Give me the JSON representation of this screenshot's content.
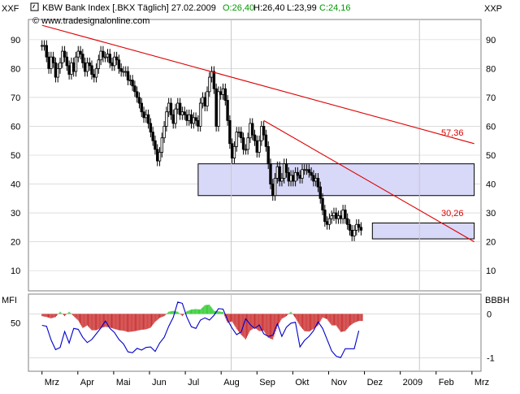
{
  "header": {
    "title": "KBW Bank Index [.BKX  Täglich] 27.02.2009",
    "open": "O:26,40",
    "high": "H:26,40",
    "low": "L:23,99",
    "close": "C:24,16",
    "watermark": "© www.tradesignalonline.com"
  },
  "axis_labels": {
    "left_top": "XXF",
    "right_top": "XXP",
    "mfi_left": "MFI",
    "mfi_right": "BBBH"
  },
  "colors": {
    "background": "#ffffff",
    "grid": "#c8c8c8",
    "trendline": "#dd0000",
    "zone_fill": "#d8d8f8",
    "mfi_line": "#0000cc",
    "hist_pos": "#33cc33",
    "hist_neg": "#cc3333",
    "open_label": "#009900",
    "close_label": "#009900"
  },
  "chart_data": [
    {
      "type": "candlestick",
      "title": "KBW Bank Index [.BKX  Täglich] 27.02.2009",
      "ylim": [
        3,
        97
      ],
      "yticks": [
        10,
        20,
        30,
        40,
        50,
        60,
        70,
        80,
        90
      ],
      "xlabels": [
        "Mrz",
        "Apr",
        "Mai",
        "Jun",
        "Jul",
        "Aug",
        "Sep",
        "Okt",
        "Nov",
        "Dez",
        "2009",
        "Feb",
        "Mrz"
      ],
      "series": [
        {
          "values": [
            [
              3.0,
              88
            ],
            [
              3.5,
              88
            ],
            [
              4.0,
              84
            ],
            [
              4.5,
              80
            ],
            [
              5.0,
              84
            ],
            [
              5.5,
              82
            ],
            [
              6.0,
              77
            ],
            [
              6.5,
              80
            ],
            [
              7.0,
              82
            ],
            [
              7.5,
              86
            ],
            [
              8.0,
              84
            ],
            [
              8.5,
              81
            ],
            [
              9.0,
              78
            ],
            [
              9.5,
              82
            ],
            [
              10.0,
              79
            ],
            [
              10.5,
              84
            ],
            [
              11.0,
              86
            ],
            [
              11.5,
              85
            ],
            [
              12.0,
              82
            ],
            [
              12.5,
              79
            ],
            [
              13.0,
              82
            ],
            [
              13.5,
              81
            ],
            [
              14.0,
              78
            ],
            [
              14.5,
              77
            ],
            [
              15.0,
              80
            ],
            [
              15.5,
              83
            ],
            [
              16.0,
              86
            ],
            [
              16.5,
              84
            ],
            [
              17.0,
              84
            ],
            [
              17.5,
              85
            ],
            [
              18.0,
              82
            ],
            [
              18.5,
              81
            ],
            [
              19.0,
              84
            ],
            [
              19.5,
              83
            ],
            [
              20.0,
              80
            ],
            [
              20.5,
              79
            ],
            [
              21.0,
              79
            ],
            [
              21.5,
              79
            ],
            [
              22.0,
              76
            ],
            [
              22.5,
              76
            ],
            [
              23.0,
              74
            ],
            [
              23.5,
              72
            ],
            [
              24.0,
              70
            ],
            [
              24.5,
              68
            ],
            [
              25.0,
              65
            ],
            [
              25.5,
              63
            ],
            [
              26.0,
              64
            ],
            [
              26.5,
              61
            ],
            [
              27.0,
              58
            ],
            [
              27.5,
              55
            ],
            [
              28.0,
              52
            ],
            [
              28.5,
              48
            ],
            [
              29.0,
              51
            ],
            [
              29.5,
              56
            ],
            [
              30.0,
              60
            ],
            [
              30.5,
              65
            ],
            [
              31.0,
              68
            ],
            [
              31.5,
              64
            ],
            [
              32.0,
              61
            ],
            [
              32.5,
              66
            ],
            [
              33.0,
              68
            ],
            [
              33.5,
              64
            ],
            [
              34.0,
              65
            ],
            [
              34.5,
              64
            ],
            [
              35.0,
              62
            ],
            [
              35.5,
              64
            ],
            [
              36.0,
              61
            ],
            [
              36.5,
              63
            ],
            [
              37.0,
              62
            ],
            [
              37.5,
              60
            ],
            [
              38.0,
              68
            ],
            [
              38.5,
              70
            ],
            [
              39.0,
              67
            ],
            [
              39.5,
              72
            ],
            [
              40.0,
              77
            ],
            [
              40.5,
              79
            ],
            [
              41.0,
              73
            ],
            [
              41.5,
              60
            ],
            [
              42.0,
              72
            ],
            [
              42.5,
              71
            ],
            [
              43.0,
              73
            ],
            [
              43.5,
              69
            ],
            [
              44.0,
              62
            ],
            [
              44.5,
              54
            ],
            [
              45.0,
              49
            ],
            [
              45.5,
              53
            ],
            [
              46.0,
              58
            ],
            [
              46.5,
              58
            ],
            [
              47.0,
              56
            ],
            [
              47.5,
              52
            ],
            [
              48.0,
              52
            ],
            [
              48.5,
              56
            ],
            [
              49.0,
              61
            ],
            [
              49.5,
              57
            ],
            [
              50.0,
              55
            ],
            [
              50.5,
              51
            ],
            [
              51.0,
              55
            ],
            [
              51.5,
              60
            ],
            [
              52.0,
              57
            ],
            [
              52.5,
              53
            ],
            [
              53.0,
              47
            ],
            [
              53.5,
              40
            ],
            [
              54.0,
              36
            ],
            [
              54.5,
              42
            ],
            [
              55.0,
              46
            ],
            [
              55.5,
              41
            ],
            [
              56.0,
              42
            ],
            [
              56.5,
              47
            ],
            [
              57.0,
              44
            ],
            [
              57.5,
              41
            ],
            [
              58.0,
              43
            ],
            [
              58.5,
              41
            ],
            [
              59.0,
              44
            ],
            [
              59.5,
              43
            ],
            [
              60.0,
              42
            ],
            [
              60.5,
              45
            ],
            [
              61.0,
              45
            ],
            [
              61.5,
              45
            ],
            [
              62.0,
              44
            ],
            [
              62.5,
              43
            ],
            [
              63.0,
              41
            ],
            [
              63.5,
              42
            ],
            [
              64.0,
              39
            ],
            [
              64.5,
              35
            ],
            [
              65.0,
              31
            ],
            [
              65.5,
              27
            ],
            [
              66.0,
              26
            ],
            [
              66.5,
              28
            ],
            [
              67.0,
              29
            ],
            [
              67.5,
              30
            ],
            [
              68.0,
              28
            ],
            [
              68.5,
              29
            ],
            [
              69.0,
              28
            ],
            [
              69.5,
              31
            ],
            [
              70.0,
              28
            ],
            [
              70.5,
              26
            ],
            [
              71.0,
              24
            ],
            [
              71.5,
              22
            ],
            [
              72.0,
              24
            ],
            [
              72.5,
              26
            ],
            [
              73.0,
              25
            ],
            [
              73.5,
              24
            ]
          ]
        }
      ],
      "trendlines": [
        [
          3,
          95,
          98.5,
          54
        ],
        [
          52,
          62,
          98.5,
          20
        ]
      ],
      "trend_labels": [
        "57,36",
        "30,26"
      ],
      "zones": [
        [
          37.5,
          98.5,
          36,
          47
        ],
        [
          76,
          98.5,
          21,
          26.5
        ]
      ],
      "vlines": [
        44.8,
        86.4
      ]
    },
    {
      "type": "line",
      "ylabel": "MFI",
      "ylim": [
        -1.3,
        0.45
      ],
      "yticks_left": [
        "50"
      ],
      "yticks_right": [
        "0",
        "-1"
      ],
      "series": [
        {
          "values": [
            [
              3,
              -0.26
            ],
            [
              4,
              -0.28
            ],
            [
              5,
              -0.59
            ],
            [
              6,
              -0.81
            ],
            [
              7,
              -0.76
            ],
            [
              8,
              -0.4
            ],
            [
              9,
              -0.66
            ],
            [
              10,
              -0.33
            ],
            [
              11,
              -0.35
            ],
            [
              12,
              -0.53
            ],
            [
              13,
              -0.65
            ],
            [
              14,
              -0.58
            ],
            [
              15,
              -0.45
            ],
            [
              16,
              -0.32
            ],
            [
              17,
              -0.16
            ],
            [
              18,
              -0.33
            ],
            [
              19,
              -0.42
            ],
            [
              20,
              -0.58
            ],
            [
              21,
              -0.68
            ],
            [
              22,
              -0.86
            ],
            [
              23,
              -0.88
            ],
            [
              24,
              -0.78
            ],
            [
              25,
              -0.82
            ],
            [
              26,
              -0.76
            ],
            [
              27,
              -0.75
            ],
            [
              28,
              -0.85
            ],
            [
              29,
              -0.66
            ],
            [
              30,
              -0.53
            ],
            [
              31,
              -0.28
            ],
            [
              32,
              -0.08
            ],
            [
              33,
              0.27
            ],
            [
              34,
              0.24
            ],
            [
              35,
              -0.07
            ],
            [
              36,
              -0.29
            ],
            [
              37,
              -0.33
            ],
            [
              38,
              -0.14
            ],
            [
              39,
              -0.09
            ],
            [
              40,
              -0.14
            ],
            [
              41,
              -0.03
            ],
            [
              42,
              0.12
            ],
            [
              43,
              0.11
            ],
            [
              44,
              -0.14
            ],
            [
              45,
              -0.32
            ],
            [
              46,
              -0.47
            ],
            [
              47,
              -0.41
            ],
            [
              48,
              -0.11
            ],
            [
              49,
              -0.24
            ],
            [
              50,
              -0.33
            ],
            [
              51,
              -0.25
            ],
            [
              52,
              -0.45
            ],
            [
              53,
              -0.51
            ],
            [
              54,
              -0.48
            ],
            [
              55,
              -0.22
            ],
            [
              56,
              -0.51
            ],
            [
              57,
              -0.3
            ],
            [
              58,
              -0.21
            ],
            [
              59,
              -0.19
            ],
            [
              60,
              -0.75
            ],
            [
              61,
              -0.6
            ],
            [
              62,
              -0.51
            ],
            [
              63,
              -0.38
            ],
            [
              64,
              -0.18
            ],
            [
              65,
              -0.33
            ],
            [
              66,
              -0.58
            ],
            [
              67,
              -0.84
            ],
            [
              68,
              -0.96
            ],
            [
              69,
              -0.99
            ],
            [
              70,
              -0.79
            ],
            [
              71,
              -0.79
            ],
            [
              72,
              -0.79
            ],
            [
              73,
              -0.38
            ]
          ]
        }
      ],
      "histogram": [
        [
          3,
          -0.05
        ],
        [
          4,
          -0.07
        ],
        [
          5,
          -0.1
        ],
        [
          6,
          -0.07
        ],
        [
          7,
          0.05
        ],
        [
          8,
          -0.05
        ],
        [
          9,
          0.05
        ],
        [
          10,
          -0.05
        ],
        [
          11,
          -0.15
        ],
        [
          12,
          -0.32
        ],
        [
          13,
          -0.26
        ],
        [
          14,
          -0.37
        ],
        [
          15,
          -0.37
        ],
        [
          16,
          -0.32
        ],
        [
          17,
          -0.29
        ],
        [
          18,
          -0.31
        ],
        [
          19,
          -0.34
        ],
        [
          20,
          -0.37
        ],
        [
          21,
          -0.38
        ],
        [
          22,
          -0.41
        ],
        [
          23,
          -0.4
        ],
        [
          24,
          -0.38
        ],
        [
          25,
          -0.36
        ],
        [
          26,
          -0.35
        ],
        [
          27,
          -0.31
        ],
        [
          28,
          -0.18
        ],
        [
          29,
          -0.09
        ],
        [
          30,
          -0.05
        ],
        [
          31,
          0.05
        ],
        [
          32,
          0.07
        ],
        [
          33,
          0.05
        ],
        [
          34,
          -0.05
        ],
        [
          35,
          0.06
        ],
        [
          36,
          0.1
        ],
        [
          37,
          0.11
        ],
        [
          38,
          0.1
        ],
        [
          39,
          0.2
        ],
        [
          40,
          0.21
        ],
        [
          41,
          0.07
        ],
        [
          42,
          0.06
        ],
        [
          43,
          0.04
        ],
        [
          44,
          -0.2
        ],
        [
          45,
          -0.17
        ],
        [
          46,
          -0.34
        ],
        [
          47,
          -0.47
        ],
        [
          48,
          -0.58
        ],
        [
          49,
          -0.38
        ],
        [
          50,
          -0.31
        ],
        [
          51,
          -0.39
        ],
        [
          52,
          -0.38
        ],
        [
          53,
          -0.54
        ],
        [
          54,
          -0.58
        ],
        [
          55,
          -0.28
        ],
        [
          56,
          -0.11
        ],
        [
          57,
          -0.05
        ],
        [
          58,
          0.05
        ],
        [
          59,
          -0.09
        ],
        [
          60,
          -0.27
        ],
        [
          61,
          -0.39
        ],
        [
          62,
          -0.4
        ],
        [
          63,
          -0.34
        ],
        [
          64,
          -0.26
        ],
        [
          65,
          -0.08
        ],
        [
          66,
          -0.12
        ],
        [
          67,
          -0.26
        ],
        [
          68,
          -0.26
        ],
        [
          69,
          -0.41
        ],
        [
          70,
          -0.39
        ],
        [
          71,
          -0.27
        ],
        [
          72,
          -0.2
        ],
        [
          73,
          -0.16
        ]
      ]
    }
  ]
}
